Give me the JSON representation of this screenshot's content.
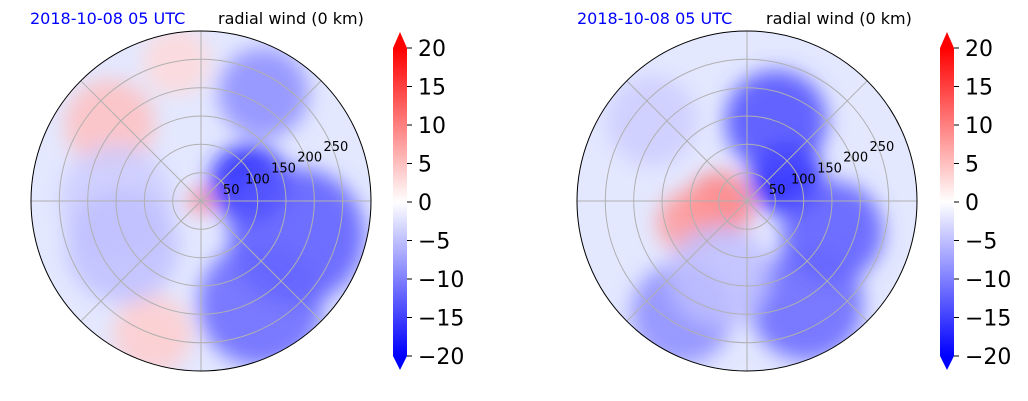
{
  "chart_data": [
    {
      "type": "heatmap",
      "projection": "polar",
      "date_label": "2018-10-08 05 UTC",
      "title": "radial wind (0 km)",
      "radius_ticks": [
        "50",
        "100",
        "150",
        "200",
        "250"
      ],
      "radius_range": [
        0,
        300
      ],
      "angular_gridlines_deg": [
        0,
        45,
        90,
        135,
        180,
        225,
        270,
        315
      ],
      "grid": true,
      "colorbar": {
        "ticks": [
          "20",
          "15",
          "10",
          "5",
          "0",
          "−5",
          "−10",
          "−15",
          "−20"
        ],
        "range": [
          -20,
          20
        ],
        "extend": "both",
        "colormap": "bwr"
      },
      "field_features": [
        {
          "theta_deg": 0,
          "r": 0,
          "radius": 22,
          "value": 10
        },
        {
          "theta_deg": 20,
          "r": 90,
          "radius": 70,
          "value": -17
        },
        {
          "theta_deg": -20,
          "r": 180,
          "radius": 120,
          "value": -13
        },
        {
          "theta_deg": -60,
          "r": 210,
          "radius": 110,
          "value": -12
        },
        {
          "theta_deg": 60,
          "r": 220,
          "radius": 80,
          "value": -9
        },
        {
          "theta_deg": 140,
          "r": 210,
          "radius": 80,
          "value": 5
        },
        {
          "theta_deg": 100,
          "r": 250,
          "radius": 60,
          "value": 3
        },
        {
          "theta_deg": -110,
          "r": 250,
          "radius": 70,
          "value": 4
        },
        {
          "theta_deg": 180,
          "r": 150,
          "radius": 100,
          "value": -4
        },
        {
          "theta_deg": -150,
          "r": 160,
          "radius": 100,
          "value": -5
        }
      ]
    },
    {
      "type": "heatmap",
      "projection": "polar",
      "date_label": "2018-10-08 05 UTC",
      "title": "radial wind (0 km)",
      "radius_ticks": [
        "50",
        "100",
        "150",
        "200",
        "250"
      ],
      "radius_range": [
        0,
        300
      ],
      "angular_gridlines_deg": [
        0,
        45,
        90,
        135,
        180,
        225,
        270,
        315
      ],
      "grid": true,
      "colorbar": {
        "ticks": [
          "20",
          "15",
          "10",
          "5",
          "0",
          "−5",
          "−10",
          "−15",
          "−20"
        ],
        "range": [
          -20,
          20
        ],
        "extend": "both",
        "colormap": "bwr"
      },
      "field_features": [
        {
          "theta_deg": 190,
          "r": 50,
          "radius": 60,
          "value": 10
        },
        {
          "theta_deg": 200,
          "r": 110,
          "radius": 55,
          "value": 8
        },
        {
          "theta_deg": 30,
          "r": 80,
          "radius": 65,
          "value": -18
        },
        {
          "theta_deg": 70,
          "r": 150,
          "radius": 90,
          "value": -14
        },
        {
          "theta_deg": -20,
          "r": 160,
          "radius": 90,
          "value": -13
        },
        {
          "theta_deg": -60,
          "r": 210,
          "radius": 100,
          "value": -12
        },
        {
          "theta_deg": 140,
          "r": 220,
          "radius": 80,
          "value": -4
        },
        {
          "theta_deg": -120,
          "r": 230,
          "radius": 90,
          "value": -9
        },
        {
          "theta_deg": 250,
          "r": 140,
          "radius": 90,
          "value": -5
        }
      ]
    }
  ],
  "colors": {
    "date_label": "#0000ff",
    "grid": "#b0b0b0",
    "axis_outline": "#000000"
  }
}
